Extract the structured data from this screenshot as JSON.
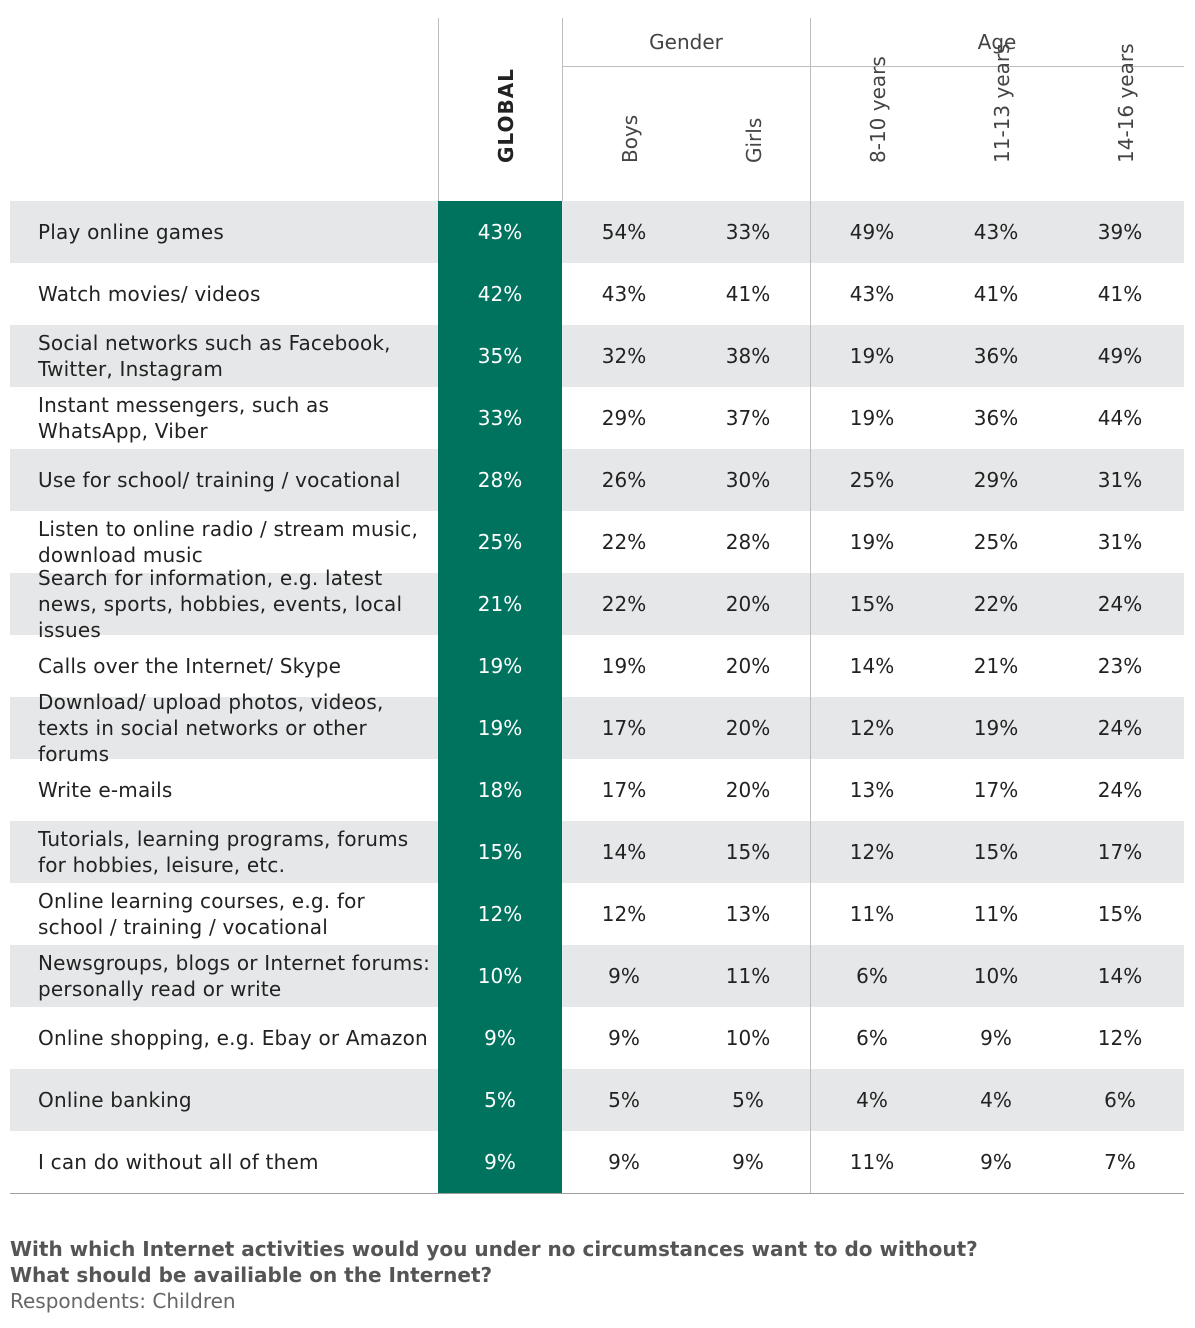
{
  "chart_data": {
    "type": "table",
    "groups": [
      {
        "name": "Gender",
        "columns": [
          "Boys",
          "Girls"
        ]
      },
      {
        "name": "Age",
        "columns": [
          "8-10 years",
          "11-13 years",
          "14-16 years"
        ]
      }
    ],
    "columns": [
      "GLOBAL",
      "Boys",
      "Girls",
      "8-10 years",
      "11-13 years",
      "14-16 years"
    ],
    "rows": [
      {
        "label": "Play online games",
        "values": [
          "43%",
          "54%",
          "33%",
          "49%",
          "43%",
          "39%"
        ]
      },
      {
        "label": "Watch movies/ videos",
        "values": [
          "42%",
          "43%",
          "41%",
          "43%",
          "41%",
          "41%"
        ]
      },
      {
        "label": "Social networks such as Facebook, Twitter, Instagram",
        "values": [
          "35%",
          "32%",
          "38%",
          "19%",
          "36%",
          "49%"
        ]
      },
      {
        "label": "Instant messengers, such as WhatsApp, Viber",
        "values": [
          "33%",
          "29%",
          "37%",
          "19%",
          "36%",
          "44%"
        ]
      },
      {
        "label": "Use for school/ training / vocational",
        "values": [
          "28%",
          "26%",
          "30%",
          "25%",
          "29%",
          "31%"
        ]
      },
      {
        "label": "Listen to online radio / stream music, download music",
        "values": [
          "25%",
          "22%",
          "28%",
          "19%",
          "25%",
          "31%"
        ]
      },
      {
        "label": "Search for information, e.g. latest news, sports, hobbies, events, local issues",
        "values": [
          "21%",
          "22%",
          "20%",
          "15%",
          "22%",
          "24%"
        ]
      },
      {
        "label": "Calls over the Internet/ Skype",
        "values": [
          "19%",
          "19%",
          "20%",
          "14%",
          "21%",
          "23%"
        ]
      },
      {
        "label": "Download/ upload photos, videos, texts in social networks or other forums",
        "values": [
          "19%",
          "17%",
          "20%",
          "12%",
          "19%",
          "24%"
        ]
      },
      {
        "label": "Write e-mails",
        "values": [
          "18%",
          "17%",
          "20%",
          "13%",
          "17%",
          "24%"
        ]
      },
      {
        "label": "Tutorials, learning programs, forums for hobbies, leisure, etc.",
        "values": [
          "15%",
          "14%",
          "15%",
          "12%",
          "15%",
          "17%"
        ]
      },
      {
        "label": "Online learning courses, e.g. for school / training / vocational",
        "values": [
          "12%",
          "12%",
          "13%",
          "11%",
          "11%",
          "15%"
        ]
      },
      {
        "label": "Newsgroups, blogs or Internet forums: personally read or write",
        "values": [
          "10%",
          "9%",
          "11%",
          "6%",
          "10%",
          "14%"
        ]
      },
      {
        "label": "Online shopping, e.g. Ebay or Amazon",
        "values": [
          "9%",
          "9%",
          "10%",
          "6%",
          "9%",
          "12%"
        ]
      },
      {
        "label": "Online banking",
        "values": [
          "5%",
          "5%",
          "5%",
          "4%",
          "4%",
          "6%"
        ]
      },
      {
        "label": "I can do without all of them",
        "values": [
          "9%",
          "9%",
          "9%",
          "11%",
          "9%",
          "7%"
        ]
      }
    ]
  },
  "footer": {
    "question_line1": "With which Internet activities would you under no circumstances want to do without?",
    "question_line2": "What should be availiable on the Internet?",
    "respondents": "Respondents: Children"
  },
  "colors": {
    "global_column": "#00735f",
    "row_shade": "#e6e7e8"
  }
}
